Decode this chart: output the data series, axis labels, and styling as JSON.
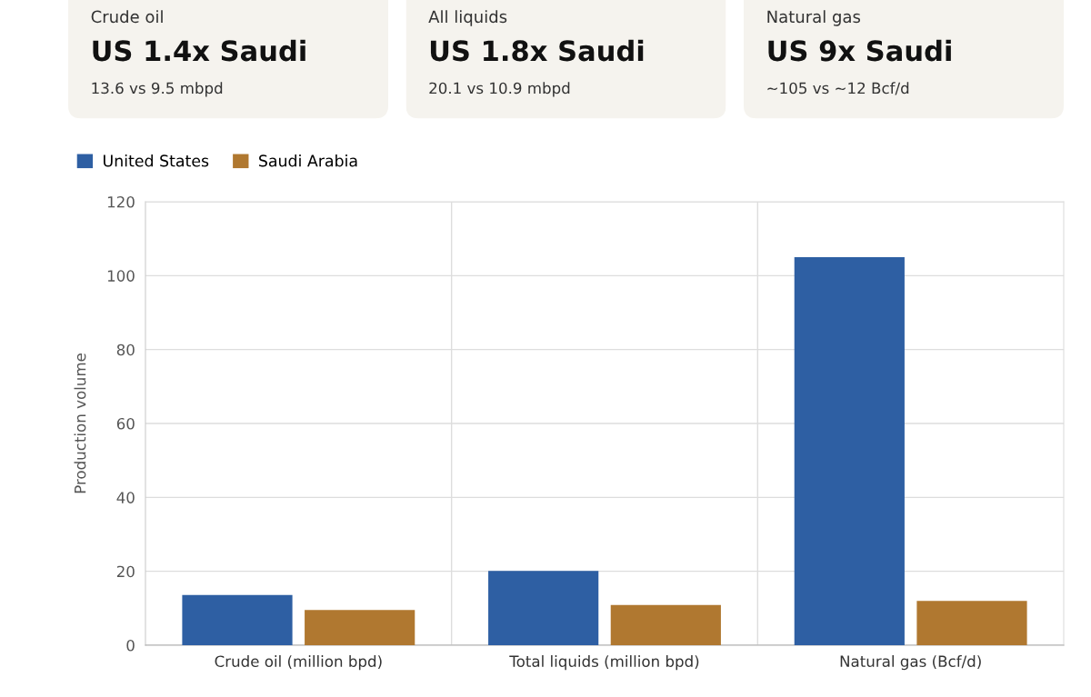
{
  "chart_data": [
    {
      "type": "other",
      "title": "Crude oil",
      "subtitle": "US 1.4x Saudi",
      "annotations": [
        "13.6 vs 9.5 mbpd"
      ]
    },
    {
      "type": "other",
      "title": "All liquids",
      "subtitle": "US 1.8x Saudi",
      "annotations": [
        "20.1 vs 10.9 mbpd"
      ]
    },
    {
      "type": "other",
      "title": "Natural gas",
      "subtitle": "US 9x Saudi",
      "annotations": [
        "~105 vs ~12 Bcf/d"
      ]
    },
    {
      "type": "bar",
      "categories": [
        "Crude oil (million bpd)",
        "Total liquids (million bpd)",
        "Natural gas (Bcf/d)"
      ],
      "ylabel": "Production volume",
      "ylim": [
        0,
        120
      ],
      "yticks": [
        0,
        20,
        40,
        60,
        80,
        100,
        120
      ],
      "grid": true,
      "legend": "top left",
      "series": [
        {
          "name": "United States",
          "color": "#2e5fa3",
          "values": [
            13.6,
            20.1,
            105
          ]
        },
        {
          "name": "Saudi Arabia",
          "color": "#b07830",
          "values": [
            9.5,
            10.9,
            12
          ]
        }
      ]
    }
  ]
}
